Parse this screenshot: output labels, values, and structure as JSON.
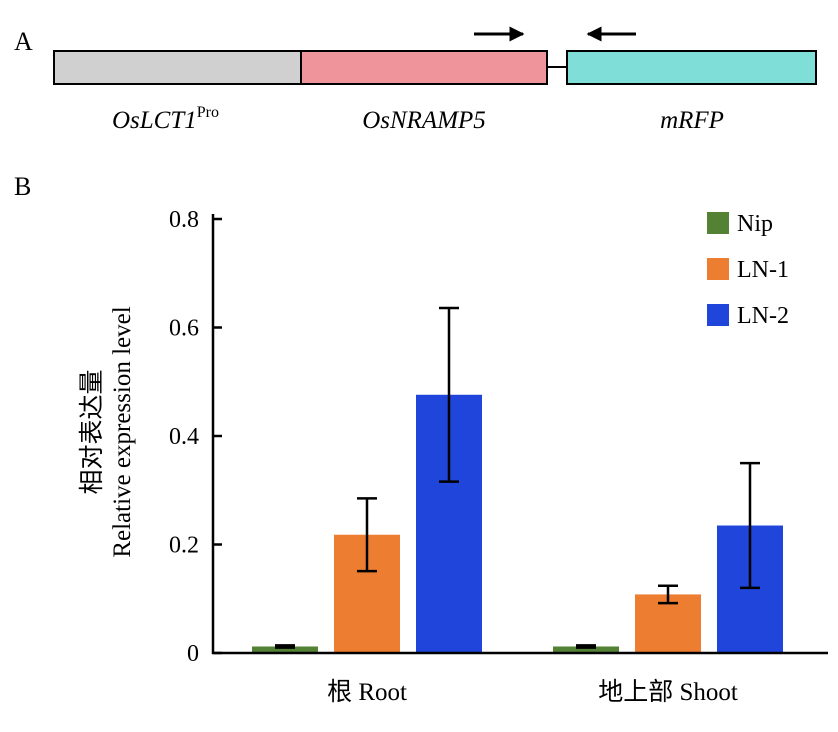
{
  "panel_a": {
    "label": "A",
    "segments": [
      {
        "name": "OsLCT1",
        "sup": "Pro",
        "color": "#d0d0d0"
      },
      {
        "name": "OsNRAMP5",
        "sup": "",
        "color": "#f0949c"
      },
      {
        "name": "mRFP",
        "sup": "",
        "color": "#7fdfd8"
      }
    ]
  },
  "panel_b_label": "B",
  "chart_data": {
    "type": "bar",
    "title": "",
    "ylabel_cn": "相对表达量",
    "ylabel": "Relative expression level",
    "xlabel": "",
    "ylim": [
      0,
      0.8
    ],
    "yticks": [
      0,
      0.2,
      0.4,
      0.6,
      0.8
    ],
    "ytick_labels": [
      "0",
      "0.2",
      "0.4",
      "0.6",
      "0.8"
    ],
    "categories": [
      "根 Root",
      "地上部 Shoot"
    ],
    "legend_position": "top-right",
    "series": [
      {
        "name": "Nip",
        "color": "#548235",
        "values": [
          0.012,
          0.012
        ],
        "errors": [
          0.002,
          0.002
        ]
      },
      {
        "name": "LN-1",
        "color": "#ed7d31",
        "values": [
          0.218,
          0.108
        ],
        "errors": [
          0.067,
          0.016
        ]
      },
      {
        "name": "LN-2",
        "color": "#1f45db",
        "values": [
          0.476,
          0.235
        ],
        "errors": [
          0.16,
          0.115
        ]
      }
    ]
  }
}
